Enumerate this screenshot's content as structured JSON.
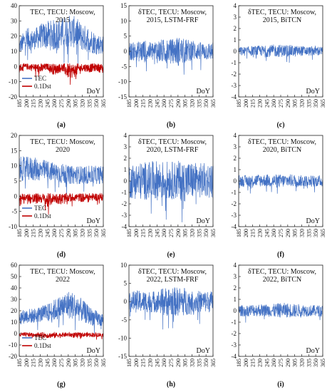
{
  "chart_data": [
    {
      "type": "line",
      "letter": "(a)",
      "title_lines": [
        "TEC, TECU: Moscow,",
        "2015"
      ],
      "ylim": [
        -20,
        40
      ],
      "yticks": [
        -20,
        -10,
        0,
        10,
        20,
        30,
        40
      ],
      "xlim": [
        185,
        365
      ],
      "xticks": [
        185,
        200,
        215,
        230,
        245,
        260,
        275,
        290,
        305,
        320,
        335,
        350,
        365
      ],
      "xlabel": "DoY",
      "grid": false,
      "legend": "bottom-left",
      "series": [
        {
          "name": "TEC",
          "color": "#4472c4",
          "x": [
            185,
            200,
            215,
            230,
            245,
            260,
            275,
            290,
            305,
            320,
            335,
            350,
            365
          ],
          "lo": [
            8,
            10,
            11,
            12,
            11,
            10,
            11,
            13,
            12,
            10,
            9,
            8,
            8
          ],
          "hi": [
            18,
            26,
            24,
            28,
            30,
            31,
            32,
            34,
            33,
            28,
            26,
            22,
            20
          ]
        },
        {
          "name": "0.1Dst",
          "color": "#c00000",
          "x": [
            185,
            200,
            215,
            230,
            245,
            260,
            275,
            290,
            305,
            320,
            335,
            350,
            365
          ],
          "lo": [
            -4,
            -2,
            -3,
            -5,
            -2,
            -6,
            -3,
            -8,
            -7,
            -3,
            -4,
            -3,
            -5
          ],
          "hi": [
            2,
            2,
            2,
            2,
            2,
            2,
            2,
            2,
            2,
            2,
            2,
            2,
            2
          ]
        }
      ]
    },
    {
      "type": "line",
      "letter": "(b)",
      "title_lines": [
        "δTEC, TECU: Moscow,",
        "2015, LSTM-FRF"
      ],
      "ylim": [
        -15,
        15
      ],
      "yticks": [
        -15,
        -10,
        -5,
        0,
        5,
        10,
        15
      ],
      "xlim": [
        185,
        365
      ],
      "xticks": [
        185,
        200,
        215,
        230,
        245,
        260,
        275,
        290,
        305,
        320,
        335,
        350,
        365
      ],
      "xlabel": "DoY",
      "grid": false,
      "series": [
        {
          "name": "δTEC",
          "color": "#4472c4",
          "x": [
            185,
            200,
            215,
            230,
            245,
            260,
            275,
            290,
            305,
            320,
            335,
            350,
            365
          ],
          "lo": [
            -3,
            -3,
            -4,
            -3,
            -4,
            -4,
            -3,
            -5,
            -4,
            -3,
            -3,
            -3,
            -3
          ],
          "hi": [
            3,
            3,
            4,
            3,
            4,
            4,
            4,
            5,
            4,
            4,
            3,
            3,
            3
          ]
        }
      ]
    },
    {
      "type": "line",
      "letter": "(c)",
      "title_lines": [
        "δTEC, TECU: Moscow,",
        "2015, BiTCN"
      ],
      "ylim": [
        -4,
        4
      ],
      "yticks": [
        -4,
        -3,
        -2,
        -1,
        0,
        1,
        2,
        3,
        4
      ],
      "xlim": [
        185,
        365
      ],
      "xticks": [
        185,
        200,
        215,
        230,
        245,
        260,
        275,
        290,
        305,
        320,
        335,
        350,
        365
      ],
      "xlabel": "DoY",
      "grid": false,
      "series": [
        {
          "name": "δTEC",
          "color": "#4472c4",
          "x": [
            185,
            200,
            215,
            230,
            245,
            260,
            275,
            290,
            305,
            320,
            335,
            350,
            365
          ],
          "lo": [
            -0.4,
            -0.4,
            -0.4,
            -0.4,
            -0.5,
            -0.5,
            -0.5,
            -0.5,
            -0.5,
            -0.4,
            -0.4,
            -0.4,
            -0.4
          ],
          "hi": [
            0.4,
            0.4,
            0.5,
            0.5,
            0.5,
            0.6,
            0.6,
            0.6,
            0.5,
            0.5,
            0.4,
            0.5,
            0.4
          ]
        }
      ]
    },
    {
      "type": "line",
      "letter": "(d)",
      "title_lines": [
        "TEC, TECU: Moscow,",
        "2020"
      ],
      "ylim": [
        -10,
        20
      ],
      "yticks": [
        -10,
        -5,
        0,
        5,
        10,
        15,
        20
      ],
      "xlim": [
        185,
        365
      ],
      "xticks": [
        185,
        200,
        215,
        230,
        245,
        260,
        275,
        290,
        305,
        320,
        335,
        350,
        365
      ],
      "xlabel": "DoY",
      "grid": false,
      "legend": "bottom-left",
      "series": [
        {
          "name": "TEC",
          "color": "#4472c4",
          "x": [
            185,
            200,
            215,
            230,
            245,
            260,
            275,
            290,
            305,
            320,
            335,
            350,
            365
          ],
          "lo": [
            5,
            5,
            5,
            5,
            5,
            5,
            4,
            4,
            4,
            4,
            4,
            4,
            4
          ],
          "hi": [
            13,
            13,
            13,
            12,
            12,
            11,
            11,
            10,
            10,
            10,
            10,
            10,
            10
          ]
        },
        {
          "name": "0.1Dst",
          "color": "#c00000",
          "x": [
            185,
            200,
            215,
            230,
            245,
            260,
            275,
            290,
            305,
            320,
            335,
            350,
            365
          ],
          "lo": [
            -2,
            -1.5,
            -3,
            -2,
            -4,
            -2,
            -3,
            -2,
            -1.5,
            -2,
            -1.5,
            -1.5,
            -1.5
          ],
          "hi": [
            1,
            1,
            1,
            1,
            1,
            1,
            1,
            1,
            1,
            1,
            1,
            1,
            1
          ]
        }
      ]
    },
    {
      "type": "line",
      "letter": "(e)",
      "title_lines": [
        "δTEC, TECU: Moscow,",
        "2020, LSTM-FRF"
      ],
      "ylim": [
        -4,
        4
      ],
      "yticks": [
        -4,
        -3,
        -2,
        -1,
        0,
        1,
        2,
        3,
        4
      ],
      "xlim": [
        185,
        365
      ],
      "xticks": [
        185,
        200,
        215,
        230,
        245,
        260,
        275,
        290,
        305,
        320,
        335,
        350,
        365
      ],
      "xlabel": "DoY",
      "grid": false,
      "series": [
        {
          "name": "δTEC",
          "color": "#4472c4",
          "x": [
            185,
            200,
            215,
            230,
            245,
            260,
            275,
            290,
            305,
            320,
            335,
            350,
            365
          ],
          "lo": [
            -1.5,
            -1.6,
            -1.7,
            -1.6,
            -1.7,
            -1.7,
            -1.6,
            -1.7,
            -1.8,
            -1.6,
            -1.5,
            -1.5,
            -1.5
          ],
          "hi": [
            1.5,
            1.6,
            1.7,
            1.7,
            1.8,
            1.8,
            1.7,
            1.8,
            1.8,
            1.7,
            1.6,
            1.6,
            1.6
          ]
        }
      ]
    },
    {
      "type": "line",
      "letter": "(f)",
      "title_lines": [
        "δTEC, TECU: Moscow,",
        "2020, BiTCN"
      ],
      "ylim": [
        -4,
        4
      ],
      "yticks": [
        -4,
        -3,
        -2,
        -1,
        0,
        1,
        2,
        3,
        4
      ],
      "xlim": [
        185,
        365
      ],
      "xticks": [
        185,
        200,
        215,
        230,
        245,
        260,
        275,
        290,
        305,
        320,
        335,
        350,
        365
      ],
      "xlabel": "DoY",
      "grid": false,
      "series": [
        {
          "name": "δTEC",
          "color": "#4472c4",
          "x": [
            185,
            200,
            215,
            230,
            245,
            260,
            275,
            290,
            305,
            320,
            335,
            350,
            365
          ],
          "lo": [
            -0.5,
            -0.5,
            -0.5,
            -0.5,
            -0.5,
            -0.6,
            -0.6,
            -0.5,
            -0.5,
            -0.5,
            -0.5,
            -0.5,
            -0.5
          ],
          "hi": [
            0.5,
            0.5,
            0.6,
            0.6,
            0.6,
            0.6,
            0.6,
            0.6,
            0.6,
            0.5,
            0.5,
            0.5,
            0.5
          ]
        }
      ]
    },
    {
      "type": "line",
      "letter": "(g)",
      "title_lines": [
        "TEC, TECU: Moscow,",
        "2022"
      ],
      "ylim": [
        -20,
        60
      ],
      "yticks": [
        -20,
        -10,
        0,
        10,
        20,
        30,
        40,
        50,
        60
      ],
      "xlim": [
        185,
        365
      ],
      "xticks": [
        185,
        200,
        215,
        230,
        245,
        260,
        275,
        290,
        305,
        320,
        335,
        350,
        365
      ],
      "xlabel": "DoY",
      "grid": false,
      "legend": "bottom-left",
      "series": [
        {
          "name": "TEC",
          "color": "#4472c4",
          "x": [
            185,
            200,
            215,
            230,
            245,
            260,
            275,
            290,
            305,
            320,
            335,
            350,
            365
          ],
          "lo": [
            8,
            9,
            9,
            10,
            10,
            11,
            12,
            13,
            12,
            10,
            8,
            6,
            6
          ],
          "hi": [
            20,
            22,
            22,
            24,
            26,
            30,
            34,
            38,
            36,
            30,
            24,
            20,
            18
          ]
        },
        {
          "name": "0.1Dst",
          "color": "#c00000",
          "x": [
            185,
            200,
            215,
            230,
            245,
            260,
            275,
            290,
            305,
            320,
            335,
            350,
            365
          ],
          "lo": [
            -3,
            -3,
            -3,
            -3,
            -4,
            -4,
            -3,
            -3,
            -4,
            -3,
            -3,
            -3,
            -3
          ],
          "hi": [
            1,
            1,
            1,
            1,
            1,
            1,
            1,
            1,
            1,
            1,
            1,
            1,
            1
          ]
        }
      ]
    },
    {
      "type": "line",
      "letter": "(h)",
      "title_lines": [
        "δTEC, TECU: Moscow,",
        "2022, LSTM-FRF"
      ],
      "ylim": [
        -15,
        10
      ],
      "yticks": [
        -15,
        -10,
        -5,
        0,
        5,
        10
      ],
      "xlim": [
        185,
        365
      ],
      "xticks": [
        185,
        200,
        215,
        230,
        245,
        260,
        275,
        290,
        305,
        320,
        335,
        350,
        365
      ],
      "xlabel": "DoY",
      "grid": false,
      "series": [
        {
          "name": "δTEC",
          "color": "#4472c4",
          "x": [
            185,
            200,
            215,
            230,
            245,
            260,
            275,
            290,
            305,
            320,
            335,
            350,
            365
          ],
          "lo": [
            -3,
            -3,
            -3,
            -3,
            -3,
            -4,
            -4,
            -4,
            -4,
            -3,
            -3,
            -3,
            -3
          ],
          "hi": [
            3,
            3,
            3,
            3,
            3,
            4,
            4,
            4,
            4,
            3,
            3,
            3,
            3
          ]
        }
      ]
    },
    {
      "type": "line",
      "letter": "(i)",
      "title_lines": [
        "δTEC, TECU: Moscow,",
        "2022, BiTCN"
      ],
      "ylim": [
        -4,
        4
      ],
      "yticks": [
        -4,
        -3,
        -2,
        -1,
        0,
        1,
        2,
        3,
        4
      ],
      "xlim": [
        185,
        365
      ],
      "xticks": [
        185,
        200,
        215,
        230,
        245,
        260,
        275,
        290,
        305,
        320,
        335,
        350,
        365
      ],
      "xlabel": "DoY",
      "grid": false,
      "series": [
        {
          "name": "δTEC",
          "color": "#4472c4",
          "x": [
            185,
            200,
            215,
            230,
            245,
            260,
            275,
            290,
            305,
            320,
            335,
            350,
            365
          ],
          "lo": [
            -0.5,
            -0.5,
            -0.5,
            -0.5,
            -0.5,
            -0.6,
            -0.6,
            -0.6,
            -0.6,
            -0.5,
            -0.5,
            -0.5,
            -0.5
          ],
          "hi": [
            0.5,
            0.5,
            0.6,
            0.6,
            0.6,
            0.6,
            0.7,
            0.7,
            0.6,
            0.6,
            0.5,
            0.5,
            0.5
          ]
        }
      ]
    }
  ]
}
